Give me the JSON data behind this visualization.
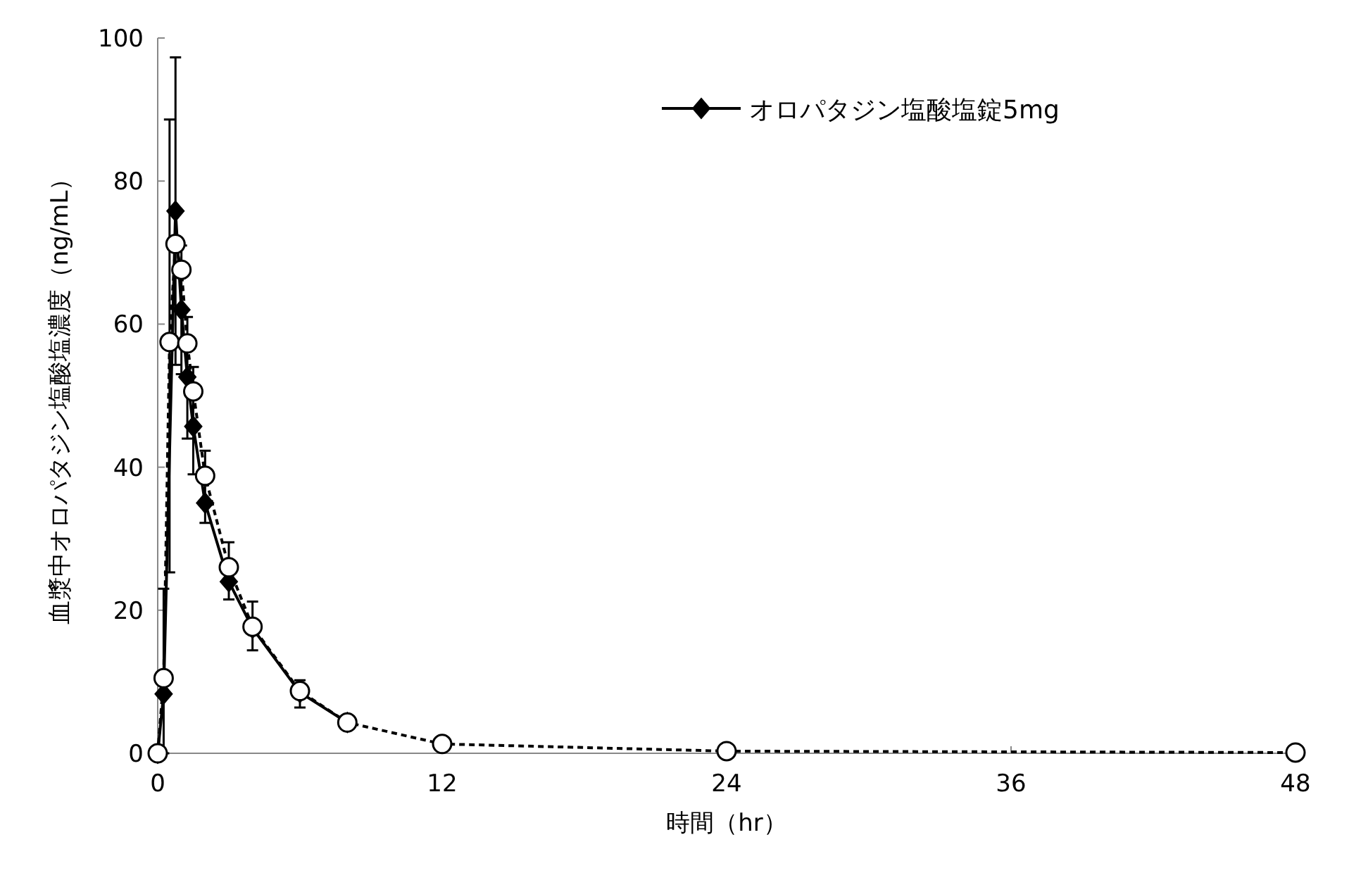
{
  "chart_data": {
    "type": "line",
    "xlabel": "時間（hr）",
    "ylabel": "血漿中オロパタジン塩酸塩濃度（ng/mL）",
    "x": [
      0,
      0.25,
      0.5,
      0.75,
      1,
      1.25,
      1.5,
      2,
      3,
      4,
      6,
      8,
      12,
      24,
      48
    ],
    "series": [
      {
        "name": "オロパタジン塩酸塩錠5mg",
        "color": "#000000",
        "marker": "diamond",
        "line_style": "solid",
        "values": [
          0,
          8.3,
          null,
          75.8,
          62,
          52.6,
          45.7,
          35,
          24,
          17.5,
          8.5,
          4.3,
          null,
          null,
          null
        ],
        "errors": [
          null,
          [
            0,
            23
          ],
          null,
          [
            54.3,
            97.3
          ],
          [
            53,
            71
          ],
          [
            44,
            61
          ],
          [
            39,
            54
          ],
          [
            32.2,
            42.3
          ],
          [
            21.5,
            29.5
          ],
          [
            14.4,
            21.2
          ],
          [
            6.4,
            10.2
          ],
          null,
          null,
          null,
          null
        ]
      },
      {
        "color": "#000000",
        "marker": "circle",
        "line_style": "dashed",
        "values": [
          0,
          10.5,
          57.5,
          71.2,
          67.6,
          57.3,
          50.6,
          38.8,
          26,
          17.7,
          8.7,
          4.3,
          1.3,
          0.3,
          0.1
        ],
        "errors": [
          null,
          null,
          [
            25.3,
            88.6
          ],
          null,
          null,
          null,
          null,
          null,
          null,
          null,
          null,
          null,
          null,
          null,
          null
        ]
      }
    ],
    "xlim": [
      0,
      48
    ],
    "xticks": [
      0,
      12,
      24,
      36,
      48
    ],
    "ylim": [
      0,
      100
    ],
    "yticks": [
      0,
      20,
      40,
      60,
      80,
      100
    ],
    "grid": false,
    "legend": "top right"
  }
}
